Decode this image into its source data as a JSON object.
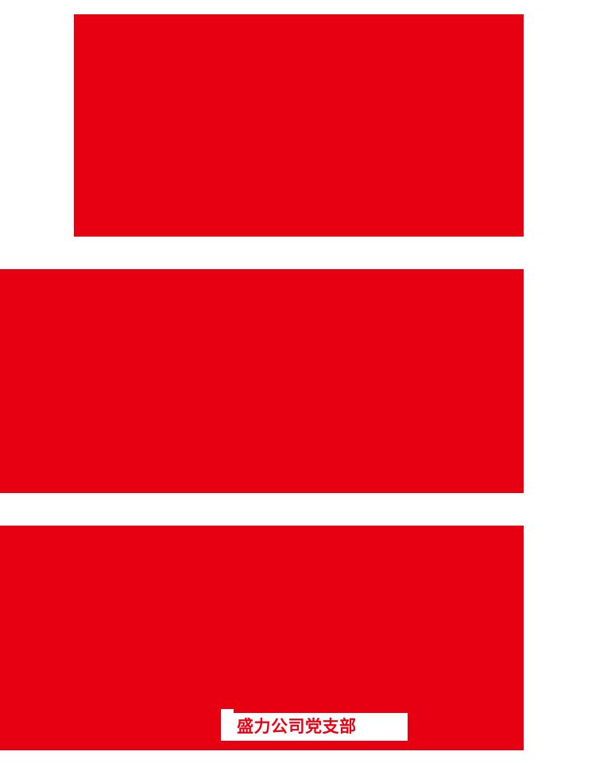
{
  "page": {
    "background_color": "#ffffff",
    "accent_red": "#e60012",
    "description_blocks": [
      "red-block-top",
      "red-block-middle",
      "red-block-bottom"
    ]
  },
  "label": {
    "text": "盛力公司党支部",
    "text_color": "#e60012",
    "box_color": "#ffffff"
  }
}
